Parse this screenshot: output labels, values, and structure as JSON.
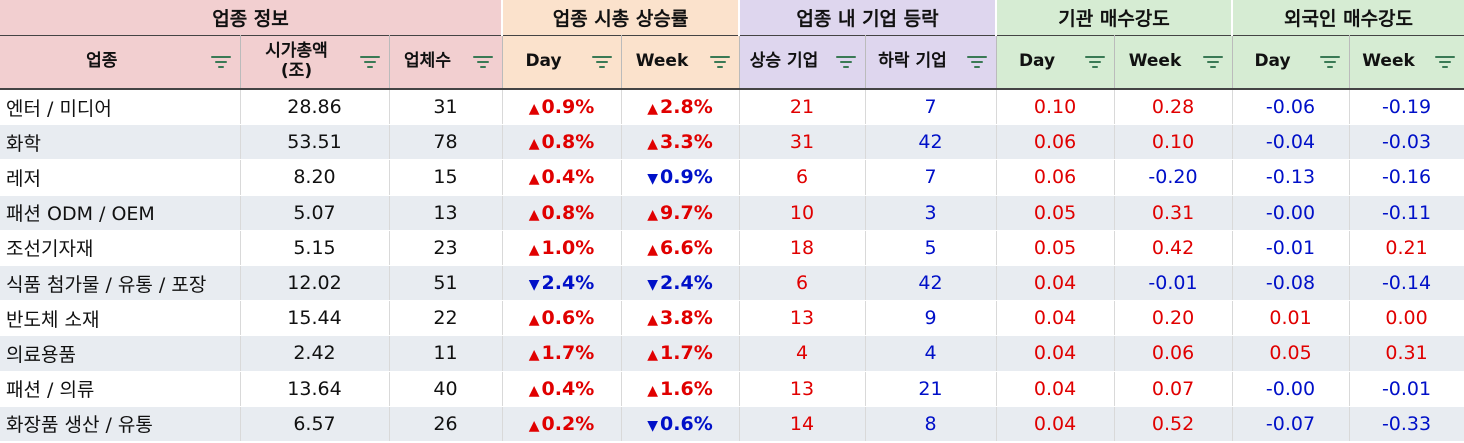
{
  "groups": [
    {
      "label": "업종 정보",
      "span": 3,
      "cls": "g1"
    },
    {
      "label": "업종 시총 상승률",
      "span": 2,
      "cls": "g2"
    },
    {
      "label": "업종 내 기업 등락",
      "span": 2,
      "cls": "g3"
    },
    {
      "label": "기관 매수강도",
      "span": 2,
      "cls": "g4"
    },
    {
      "label": "외국인 매수강도",
      "span": 2,
      "cls": "g5"
    }
  ],
  "columns": [
    {
      "label": "업종",
      "cls": "c1"
    },
    {
      "label": "시가총액\n(조)",
      "cls": "c1"
    },
    {
      "label": "업체수",
      "cls": "c1"
    },
    {
      "label": "Day",
      "cls": "c2"
    },
    {
      "label": "Week",
      "cls": "c2"
    },
    {
      "label": "상승 기업",
      "cls": "c3"
    },
    {
      "label": "하락 기업",
      "cls": "c3"
    },
    {
      "label": "Day",
      "cls": "c4"
    },
    {
      "label": "Week",
      "cls": "c4"
    },
    {
      "label": "Day",
      "cls": "c5"
    },
    {
      "label": "Week",
      "cls": "c5"
    }
  ],
  "rows": [
    {
      "name": "엔터 / 미디어",
      "cap": "28.86",
      "count": "31",
      "d_dir": "up",
      "d": "0.9%",
      "w_dir": "up",
      "w": "2.8%",
      "rise": "21",
      "fall": "7",
      "inst_d": "0.10",
      "inst_w": "0.28",
      "for_d": "-0.06",
      "for_w": "-0.19"
    },
    {
      "name": "화학",
      "cap": "53.51",
      "count": "78",
      "d_dir": "up",
      "d": "0.8%",
      "w_dir": "up",
      "w": "3.3%",
      "rise": "31",
      "fall": "42",
      "inst_d": "0.06",
      "inst_w": "0.10",
      "for_d": "-0.04",
      "for_w": "-0.03"
    },
    {
      "name": "레저",
      "cap": "8.20",
      "count": "15",
      "d_dir": "up",
      "d": "0.4%",
      "w_dir": "down",
      "w": "0.9%",
      "rise": "6",
      "fall": "7",
      "inst_d": "0.06",
      "inst_w": "-0.20",
      "for_d": "-0.13",
      "for_w": "-0.16"
    },
    {
      "name": "패션 ODM / OEM",
      "cap": "5.07",
      "count": "13",
      "d_dir": "up",
      "d": "0.8%",
      "w_dir": "up",
      "w": "9.7%",
      "rise": "10",
      "fall": "3",
      "inst_d": "0.05",
      "inst_w": "0.31",
      "for_d": "-0.00",
      "for_w": "-0.11"
    },
    {
      "name": "조선기자재",
      "cap": "5.15",
      "count": "23",
      "d_dir": "up",
      "d": "1.0%",
      "w_dir": "up",
      "w": "6.6%",
      "rise": "18",
      "fall": "5",
      "inst_d": "0.05",
      "inst_w": "0.42",
      "for_d": "-0.01",
      "for_w": "0.21"
    },
    {
      "name": "식품 첨가물 / 유통 / 포장",
      "cap": "12.02",
      "count": "51",
      "d_dir": "down",
      "d": "2.4%",
      "w_dir": "down",
      "w": "2.4%",
      "rise": "6",
      "fall": "42",
      "inst_d": "0.04",
      "inst_w": "-0.01",
      "for_d": "-0.08",
      "for_w": "-0.14"
    },
    {
      "name": "반도체 소재",
      "cap": "15.44",
      "count": "22",
      "d_dir": "up",
      "d": "0.6%",
      "w_dir": "up",
      "w": "3.8%",
      "rise": "13",
      "fall": "9",
      "inst_d": "0.04",
      "inst_w": "0.20",
      "for_d": "0.01",
      "for_w": "0.00"
    },
    {
      "name": "의료용품",
      "cap": "2.42",
      "count": "11",
      "d_dir": "up",
      "d": "1.7%",
      "w_dir": "up",
      "w": "1.7%",
      "rise": "4",
      "fall": "4",
      "inst_d": "0.04",
      "inst_w": "0.06",
      "for_d": "0.05",
      "for_w": "0.31"
    },
    {
      "name": "패션 / 의류",
      "cap": "13.64",
      "count": "40",
      "d_dir": "up",
      "d": "0.4%",
      "w_dir": "up",
      "w": "1.6%",
      "rise": "13",
      "fall": "21",
      "inst_d": "0.04",
      "inst_w": "0.07",
      "for_d": "-0.00",
      "for_w": "-0.01"
    },
    {
      "name": "화장품 생산 / 유통",
      "cap": "6.57",
      "count": "26",
      "d_dir": "up",
      "d": "0.2%",
      "w_dir": "down",
      "w": "0.6%",
      "rise": "14",
      "fall": "8",
      "inst_d": "0.04",
      "inst_w": "0.52",
      "for_d": "-0.07",
      "for_w": "-0.33"
    }
  ],
  "icons": {
    "filter": "filter-icon",
    "up": "triangle-up-icon",
    "down": "triangle-down-icon"
  },
  "colors": {
    "up": "#e00000",
    "down": "#0010c8"
  }
}
